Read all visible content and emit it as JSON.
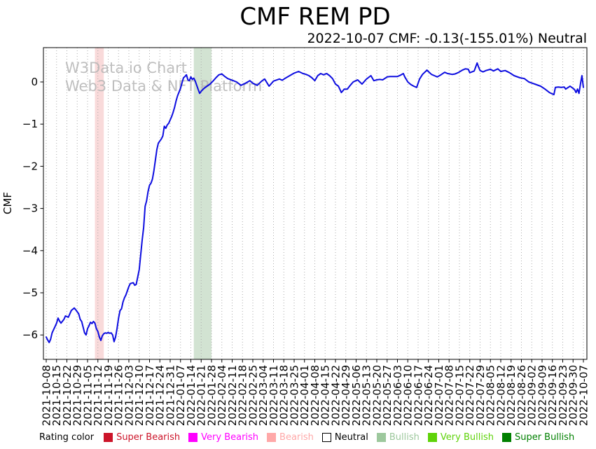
{
  "title": "CMF REM PD",
  "subtitle": "2022-10-07 CMF: -0.13(-155.01%) Neutral",
  "watermark": {
    "line1": "W3Data.io Chart",
    "line2": "Web3 Data & NFT Platform",
    "color": "#b4b4b4"
  },
  "legend": {
    "title": "Rating color",
    "items": [
      {
        "label": "Super Bearish",
        "color": "#cc1429",
        "text_color": "#cc1429"
      },
      {
        "label": "Very Bearish",
        "color": "#ff00ff",
        "text_color": "#ff00ff"
      },
      {
        "label": "Bearish",
        "color": "#ffa8a8",
        "text_color": "#ffa8a8"
      },
      {
        "label": "Neutral",
        "color": "#ffffff",
        "border": "#000000",
        "text_color": "#000000"
      },
      {
        "label": "Bullish",
        "color": "#9dc89d",
        "text_color": "#9dc89d"
      },
      {
        "label": "Very Bullish",
        "color": "#5fd30a",
        "text_color": "#5fd30a"
      },
      {
        "label": "Super Bullish",
        "color": "#008000",
        "text_color": "#008000"
      }
    ]
  },
  "chart_data": {
    "type": "line",
    "title": "CMF REM PD",
    "xlabel": "",
    "ylabel": "CMF",
    "ylim": [
      -6.6,
      0.8
    ],
    "x_range": [
      "2021-10-08",
      "2022-10-07"
    ],
    "y_ticks": [
      0,
      -1,
      -2,
      -3,
      -4,
      -5,
      -6
    ],
    "grid": "vertical-dotted",
    "line_color": "#0d0de0",
    "x_tick_labels": [
      "2021-10-08",
      "2021-10-15",
      "2021-10-22",
      "2021-10-29",
      "2021-11-05",
      "2021-11-12",
      "2021-11-19",
      "2021-11-26",
      "2021-12-03",
      "2021-12-10",
      "2021-12-17",
      "2021-12-24",
      "2021-12-31",
      "2022-01-07",
      "2022-01-14",
      "2022-01-21",
      "2022-01-28",
      "2022-02-04",
      "2022-02-11",
      "2022-02-18",
      "2022-02-25",
      "2022-03-04",
      "2022-03-11",
      "2022-03-18",
      "2022-03-25",
      "2022-04-01",
      "2022-04-08",
      "2022-04-15",
      "2022-04-22",
      "2022-04-29",
      "2022-05-06",
      "2022-05-13",
      "2022-05-20",
      "2022-05-27",
      "2022-06-03",
      "2022-06-10",
      "2022-06-17",
      "2022-06-24",
      "2022-07-01",
      "2022-07-08",
      "2022-07-15",
      "2022-07-22",
      "2022-07-29",
      "2022-08-05",
      "2022-08-12",
      "2022-08-19",
      "2022-08-26",
      "2022-09-02",
      "2022-09-09",
      "2022-09-16",
      "2022-09-23",
      "2022-09-30",
      "2022-10-07"
    ],
    "bands": [
      {
        "label": "Bearish rating period",
        "start": "2021-11-10",
        "end": "2021-11-16",
        "color": "#f9dada"
      },
      {
        "label": "Bullish rating period",
        "start": "2022-01-16",
        "end": "2022-01-28",
        "color": "#d2e3d2"
      }
    ],
    "series": [
      {
        "name": "CMF",
        "points": [
          [
            "2021-10-08",
            -6.05
          ],
          [
            "2021-10-09",
            -6.12
          ],
          [
            "2021-10-10",
            -6.18
          ],
          [
            "2021-10-11",
            -6.1
          ],
          [
            "2021-10-12",
            -5.95
          ],
          [
            "2021-10-14",
            -5.8
          ],
          [
            "2021-10-15",
            -5.72
          ],
          [
            "2021-10-16",
            -5.6
          ],
          [
            "2021-10-17",
            -5.67
          ],
          [
            "2021-10-18",
            -5.72
          ],
          [
            "2021-10-20",
            -5.63
          ],
          [
            "2021-10-21",
            -5.55
          ],
          [
            "2021-10-23",
            -5.58
          ],
          [
            "2021-10-24",
            -5.5
          ],
          [
            "2021-10-25",
            -5.42
          ],
          [
            "2021-10-27",
            -5.36
          ],
          [
            "2021-10-28",
            -5.4
          ],
          [
            "2021-10-29",
            -5.45
          ],
          [
            "2021-10-30",
            -5.5
          ],
          [
            "2021-10-31",
            -5.63
          ],
          [
            "2021-11-01",
            -5.68
          ],
          [
            "2021-11-03",
            -5.95
          ],
          [
            "2021-11-04",
            -6.0
          ],
          [
            "2021-11-05",
            -5.85
          ],
          [
            "2021-11-06",
            -5.78
          ],
          [
            "2021-11-07",
            -5.7
          ],
          [
            "2021-11-08",
            -5.73
          ],
          [
            "2021-11-09",
            -5.68
          ],
          [
            "2021-11-10",
            -5.72
          ],
          [
            "2021-11-11",
            -5.85
          ],
          [
            "2021-11-12",
            -5.92
          ],
          [
            "2021-11-13",
            -6.05
          ],
          [
            "2021-11-14",
            -6.13
          ],
          [
            "2021-11-15",
            -6.02
          ],
          [
            "2021-11-16",
            -5.97
          ],
          [
            "2021-11-17",
            -5.95
          ],
          [
            "2021-11-18",
            -5.96
          ],
          [
            "2021-11-19",
            -5.94
          ],
          [
            "2021-11-20",
            -5.96
          ],
          [
            "2021-11-21",
            -5.95
          ],
          [
            "2021-11-22",
            -6.0
          ],
          [
            "2021-11-23",
            -6.16
          ],
          [
            "2021-11-24",
            -6.05
          ],
          [
            "2021-11-25",
            -5.85
          ],
          [
            "2021-11-26",
            -5.6
          ],
          [
            "2021-11-27",
            -5.42
          ],
          [
            "2021-11-28",
            -5.38
          ],
          [
            "2021-11-29",
            -5.22
          ],
          [
            "2021-11-30",
            -5.12
          ],
          [
            "2021-12-01",
            -5.05
          ],
          [
            "2021-12-03",
            -4.85
          ],
          [
            "2021-12-04",
            -4.78
          ],
          [
            "2021-12-06",
            -4.76
          ],
          [
            "2021-12-07",
            -4.82
          ],
          [
            "2021-12-08",
            -4.8
          ],
          [
            "2021-12-10",
            -4.45
          ],
          [
            "2021-12-11",
            -4.1
          ],
          [
            "2021-12-12",
            -3.75
          ],
          [
            "2021-12-13",
            -3.45
          ],
          [
            "2021-12-14",
            -2.95
          ],
          [
            "2021-12-15",
            -2.82
          ],
          [
            "2021-12-16",
            -2.6
          ],
          [
            "2021-12-17",
            -2.45
          ],
          [
            "2021-12-18",
            -2.4
          ],
          [
            "2021-12-19",
            -2.3
          ],
          [
            "2021-12-20",
            -2.1
          ],
          [
            "2021-12-21",
            -1.85
          ],
          [
            "2021-12-22",
            -1.6
          ],
          [
            "2021-12-23",
            -1.45
          ],
          [
            "2021-12-25",
            -1.35
          ],
          [
            "2021-12-26",
            -1.28
          ],
          [
            "2021-12-27",
            -1.05
          ],
          [
            "2021-12-28",
            -1.1
          ],
          [
            "2021-12-29",
            -1.02
          ],
          [
            "2021-12-30",
            -0.98
          ],
          [
            "2022-01-01",
            -0.82
          ],
          [
            "2022-01-02",
            -0.72
          ],
          [
            "2022-01-03",
            -0.6
          ],
          [
            "2022-01-04",
            -0.45
          ],
          [
            "2022-01-05",
            -0.33
          ],
          [
            "2022-01-07",
            -0.15
          ],
          [
            "2022-01-08",
            -0.02
          ],
          [
            "2022-01-09",
            0.1
          ],
          [
            "2022-01-10",
            0.13
          ],
          [
            "2022-01-11",
            0.17
          ],
          [
            "2022-01-12",
            0.05
          ],
          [
            "2022-01-13",
            0.03
          ],
          [
            "2022-01-14",
            0.12
          ],
          [
            "2022-01-15",
            0.06
          ],
          [
            "2022-01-16",
            0.09
          ],
          [
            "2022-01-17",
            0.02
          ],
          [
            "2022-01-18",
            -0.08
          ],
          [
            "2022-01-19",
            -0.18
          ],
          [
            "2022-01-20",
            -0.27
          ],
          [
            "2022-01-21",
            -0.22
          ],
          [
            "2022-01-23",
            -0.15
          ],
          [
            "2022-01-25",
            -0.1
          ],
          [
            "2022-01-27",
            -0.05
          ],
          [
            "2022-01-29",
            0.02
          ],
          [
            "2022-01-31",
            0.1
          ],
          [
            "2022-02-02",
            0.17
          ],
          [
            "2022-02-04",
            0.19
          ],
          [
            "2022-02-06",
            0.13
          ],
          [
            "2022-02-08",
            0.08
          ],
          [
            "2022-02-11",
            0.04
          ],
          [
            "2022-02-14",
            0.0
          ],
          [
            "2022-02-17",
            -0.08
          ],
          [
            "2022-02-20",
            -0.03
          ],
          [
            "2022-02-23",
            0.03
          ],
          [
            "2022-02-25",
            -0.03
          ],
          [
            "2022-02-28",
            -0.08
          ],
          [
            "2022-03-03",
            0.02
          ],
          [
            "2022-03-05",
            0.07
          ],
          [
            "2022-03-08",
            -0.1
          ],
          [
            "2022-03-11",
            0.02
          ],
          [
            "2022-03-15",
            0.07
          ],
          [
            "2022-03-17",
            0.04
          ],
          [
            "2022-03-19",
            0.09
          ],
          [
            "2022-03-22",
            0.15
          ],
          [
            "2022-03-25",
            0.21
          ],
          [
            "2022-03-28",
            0.25
          ],
          [
            "2022-03-31",
            0.2
          ],
          [
            "2022-04-02",
            0.18
          ],
          [
            "2022-04-04",
            0.15
          ],
          [
            "2022-04-06",
            0.1
          ],
          [
            "2022-04-08",
            0.03
          ],
          [
            "2022-04-10",
            0.15
          ],
          [
            "2022-04-12",
            0.2
          ],
          [
            "2022-04-14",
            0.17
          ],
          [
            "2022-04-16",
            0.2
          ],
          [
            "2022-04-18",
            0.15
          ],
          [
            "2022-04-20",
            0.08
          ],
          [
            "2022-04-22",
            -0.05
          ],
          [
            "2022-04-24",
            -0.1
          ],
          [
            "2022-04-26",
            -0.25
          ],
          [
            "2022-04-28",
            -0.17
          ],
          [
            "2022-04-30",
            -0.17
          ],
          [
            "2022-05-02",
            -0.08
          ],
          [
            "2022-05-04",
            0.0
          ],
          [
            "2022-05-07",
            0.05
          ],
          [
            "2022-05-10",
            -0.05
          ],
          [
            "2022-05-13",
            0.07
          ],
          [
            "2022-05-16",
            0.15
          ],
          [
            "2022-05-18",
            0.03
          ],
          [
            "2022-05-20",
            0.05
          ],
          [
            "2022-05-22",
            0.06
          ],
          [
            "2022-05-24",
            0.05
          ],
          [
            "2022-05-27",
            0.12
          ],
          [
            "2022-05-29",
            0.13
          ],
          [
            "2022-06-01",
            0.13
          ],
          [
            "2022-06-03",
            0.13
          ],
          [
            "2022-06-05",
            0.16
          ],
          [
            "2022-06-07",
            0.2
          ],
          [
            "2022-06-08",
            0.12
          ],
          [
            "2022-06-10",
            0.0
          ],
          [
            "2022-06-12",
            -0.06
          ],
          [
            "2022-06-14",
            -0.1
          ],
          [
            "2022-06-16",
            -0.13
          ],
          [
            "2022-06-18",
            0.07
          ],
          [
            "2022-06-20",
            0.18
          ],
          [
            "2022-06-23",
            0.28
          ],
          [
            "2022-06-26",
            0.18
          ],
          [
            "2022-06-28",
            0.15
          ],
          [
            "2022-06-30",
            0.12
          ],
          [
            "2022-07-02",
            0.16
          ],
          [
            "2022-07-05",
            0.23
          ],
          [
            "2022-07-07",
            0.2
          ],
          [
            "2022-07-10",
            0.18
          ],
          [
            "2022-07-12",
            0.19
          ],
          [
            "2022-07-14",
            0.22
          ],
          [
            "2022-07-17",
            0.28
          ],
          [
            "2022-07-19",
            0.31
          ],
          [
            "2022-07-21",
            0.3
          ],
          [
            "2022-07-22",
            0.22
          ],
          [
            "2022-07-25",
            0.26
          ],
          [
            "2022-07-27",
            0.45
          ],
          [
            "2022-07-28",
            0.35
          ],
          [
            "2022-07-29",
            0.27
          ],
          [
            "2022-07-31",
            0.24
          ],
          [
            "2022-08-02",
            0.27
          ],
          [
            "2022-08-05",
            0.3
          ],
          [
            "2022-08-07",
            0.26
          ],
          [
            "2022-08-10",
            0.31
          ],
          [
            "2022-08-12",
            0.25
          ],
          [
            "2022-08-15",
            0.27
          ],
          [
            "2022-08-18",
            0.22
          ],
          [
            "2022-08-21",
            0.15
          ],
          [
            "2022-08-25",
            0.1
          ],
          [
            "2022-08-28",
            0.08
          ],
          [
            "2022-08-31",
            0.0
          ],
          [
            "2022-09-04",
            -0.05
          ],
          [
            "2022-09-08",
            -0.1
          ],
          [
            "2022-09-11",
            -0.17
          ],
          [
            "2022-09-14",
            -0.25
          ],
          [
            "2022-09-17",
            -0.3
          ],
          [
            "2022-09-18",
            -0.13
          ],
          [
            "2022-09-20",
            -0.12
          ],
          [
            "2022-09-22",
            -0.13
          ],
          [
            "2022-09-24",
            -0.12
          ],
          [
            "2022-09-25",
            -0.17
          ],
          [
            "2022-09-28",
            -0.1
          ],
          [
            "2022-10-01",
            -0.18
          ],
          [
            "2022-10-02",
            -0.25
          ],
          [
            "2022-10-03",
            -0.17
          ],
          [
            "2022-10-04",
            -0.27
          ],
          [
            "2022-10-05",
            -0.05
          ],
          [
            "2022-10-06",
            0.15
          ],
          [
            "2022-10-07",
            -0.13
          ]
        ]
      }
    ]
  }
}
